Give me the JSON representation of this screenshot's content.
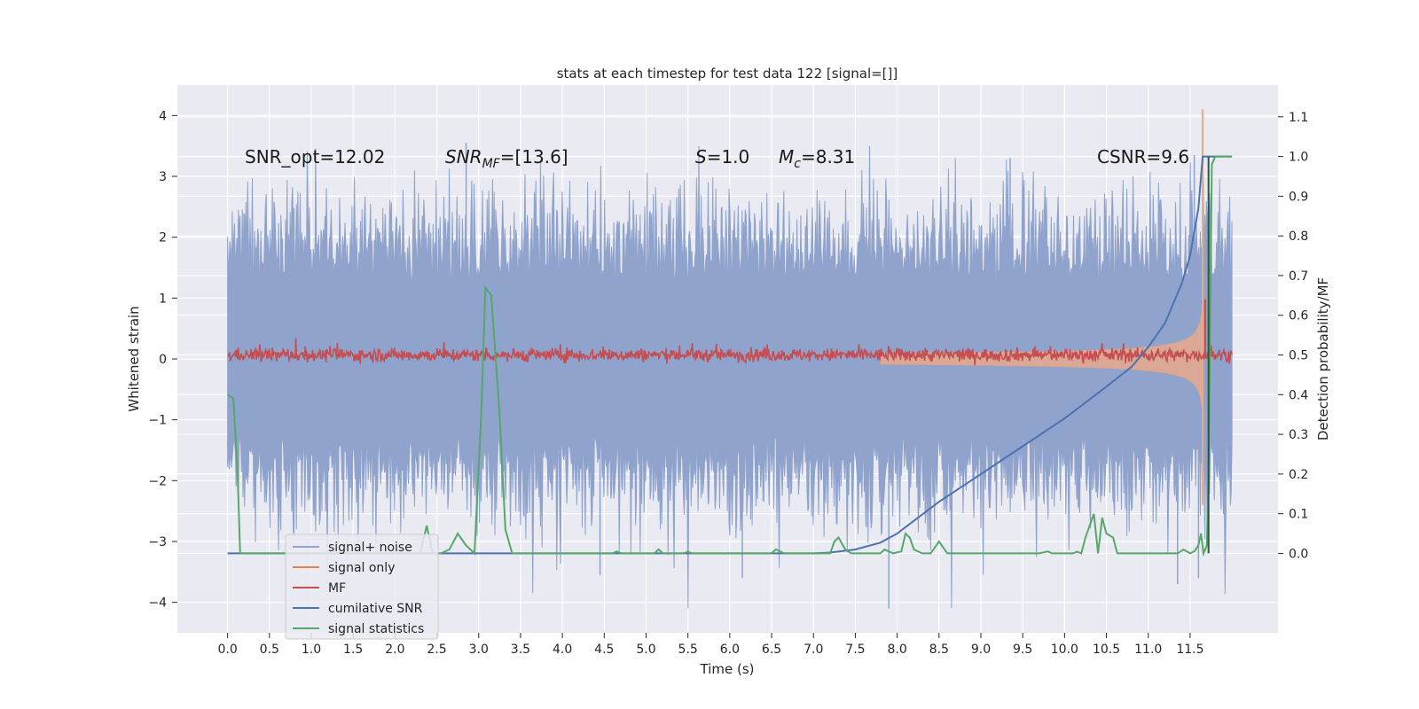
{
  "chart_data": {
    "type": "line",
    "title": "stats at each timestep for test data 122 [signal=[]]",
    "xlabel": "Time (s)",
    "ylabel_left": "Whitened strain",
    "ylabel_right": "Detection probability/MF",
    "xlim": [
      -0.6,
      12.55
    ],
    "ylim_left": [
      -4.5,
      4.5
    ],
    "ylim_right": [
      -0.2,
      1.18
    ],
    "x_ticks": [
      "0.0",
      "0.5",
      "1.0",
      "1.5",
      "2.0",
      "2.5",
      "3.0",
      "3.5",
      "4.0",
      "4.5",
      "5.0",
      "5.5",
      "6.0",
      "6.5",
      "7.0",
      "7.5",
      "8.0",
      "8.5",
      "9.0",
      "9.5",
      "10.0",
      "10.5",
      "11.0",
      "11.5"
    ],
    "y_left_ticks": [
      "4",
      "3",
      "2",
      "1",
      "0",
      "−1",
      "−2",
      "−3",
      "−4"
    ],
    "y_right_ticks": [
      "1.1",
      "1.0",
      "0.9",
      "0.8",
      "0.7",
      "0.6",
      "0.5",
      "0.4",
      "0.3",
      "0.2",
      "0.1",
      "0.0"
    ],
    "grid": true,
    "legend_position": "lower-left",
    "annotations": {
      "snr_opt": "SNR_opt=12.02",
      "snr_mf_main": "SNR",
      "snr_mf_sub": "MF",
      "snr_mf_value": "=[13.6]",
      "s_main": "S",
      "s_value": "=1.0",
      "mc_main": "M",
      "mc_sub": "c",
      "mc_value": "=8.31",
      "csnr": "CSNR=9.6"
    },
    "series": [
      {
        "name": "signal+ noise",
        "color": "#8fa3cc",
        "axis": "left",
        "envelope": {
          "x_range": [
            0.0,
            12.0
          ],
          "core": [
            -1.3,
            1.3
          ],
          "spike_max": 3.5,
          "spike_min": -4.1
        }
      },
      {
        "name": "signal only",
        "color": "#dd8452",
        "axis": "left",
        "chirp": {
          "start_s": 7.8,
          "peak_s": 11.65,
          "end_s": 11.7,
          "peak_amplitude": 4.1
        }
      },
      {
        "name": "MF",
        "color": "#c44e52",
        "axis": "right",
        "baseline": 0.5,
        "noise": 0.015,
        "spike": {
          "x": 11.68,
          "y": 0.64
        }
      },
      {
        "name": "cumilative SNR",
        "color": "#4c72b0",
        "axis": "right",
        "x": [
          0.0,
          7.0,
          7.2,
          7.5,
          7.8,
          8.0,
          8.5,
          9.0,
          9.5,
          10.0,
          10.5,
          10.8,
          11.0,
          11.2,
          11.4,
          11.5,
          11.6,
          11.65,
          11.7,
          12.0
        ],
        "y": [
          0.0,
          0.0,
          0.002,
          0.01,
          0.027,
          0.05,
          0.13,
          0.2,
          0.27,
          0.34,
          0.42,
          0.47,
          0.52,
          0.58,
          0.68,
          0.75,
          0.87,
          1.0,
          1.0,
          1.0
        ]
      },
      {
        "name": "signal statistics",
        "color": "#55a868",
        "axis": "right",
        "x": [
          0.0,
          0.07,
          0.12,
          0.15,
          0.2,
          2.3,
          2.38,
          2.45,
          2.55,
          2.65,
          2.75,
          2.85,
          2.95,
          3.03,
          3.08,
          3.15,
          3.25,
          3.32,
          3.4,
          4.6,
          4.65,
          4.7,
          5.1,
          5.15,
          5.2,
          5.45,
          5.5,
          5.55,
          6.5,
          6.55,
          6.65,
          7.2,
          7.25,
          7.3,
          7.38,
          7.45,
          7.8,
          7.85,
          7.95,
          8.05,
          8.1,
          8.15,
          8.2,
          8.3,
          8.4,
          8.5,
          8.6,
          8.65,
          8.7,
          9.7,
          9.8,
          9.85,
          9.9,
          10.1,
          10.15,
          10.2,
          10.25,
          10.3,
          10.35,
          10.4,
          10.45,
          10.5,
          10.58,
          10.63,
          10.68,
          10.75,
          11.35,
          11.42,
          11.5,
          11.55,
          11.6,
          11.63,
          11.66,
          11.7,
          11.72,
          11.76,
          11.8,
          11.9,
          12.0
        ],
        "y": [
          0.4,
          0.39,
          0.2,
          0.0,
          0.0,
          0.0,
          0.07,
          0.0,
          0.0,
          0.01,
          0.05,
          0.02,
          0.0,
          0.35,
          0.67,
          0.65,
          0.35,
          0.06,
          0.0,
          0.0,
          0.005,
          0.0,
          0.0,
          0.01,
          0.0,
          0.0,
          0.004,
          0.0,
          0.0,
          0.01,
          0.0,
          0.0,
          0.03,
          0.04,
          0.01,
          0.0,
          0.0,
          0.01,
          0.0,
          0.005,
          0.05,
          0.04,
          0.01,
          0.0,
          0.0,
          0.03,
          0.0,
          0.0,
          0.0,
          0.0,
          0.005,
          0.0,
          0.0,
          0.0,
          0.004,
          0.0,
          0.04,
          0.07,
          0.1,
          0.0,
          0.09,
          0.05,
          0.04,
          0.0,
          0.0,
          0.0,
          0.0,
          0.01,
          0.0,
          0.005,
          0.02,
          0.05,
          0.0,
          0.02,
          0.2,
          0.98,
          1.0,
          1.0,
          1.0
        ]
      }
    ]
  }
}
